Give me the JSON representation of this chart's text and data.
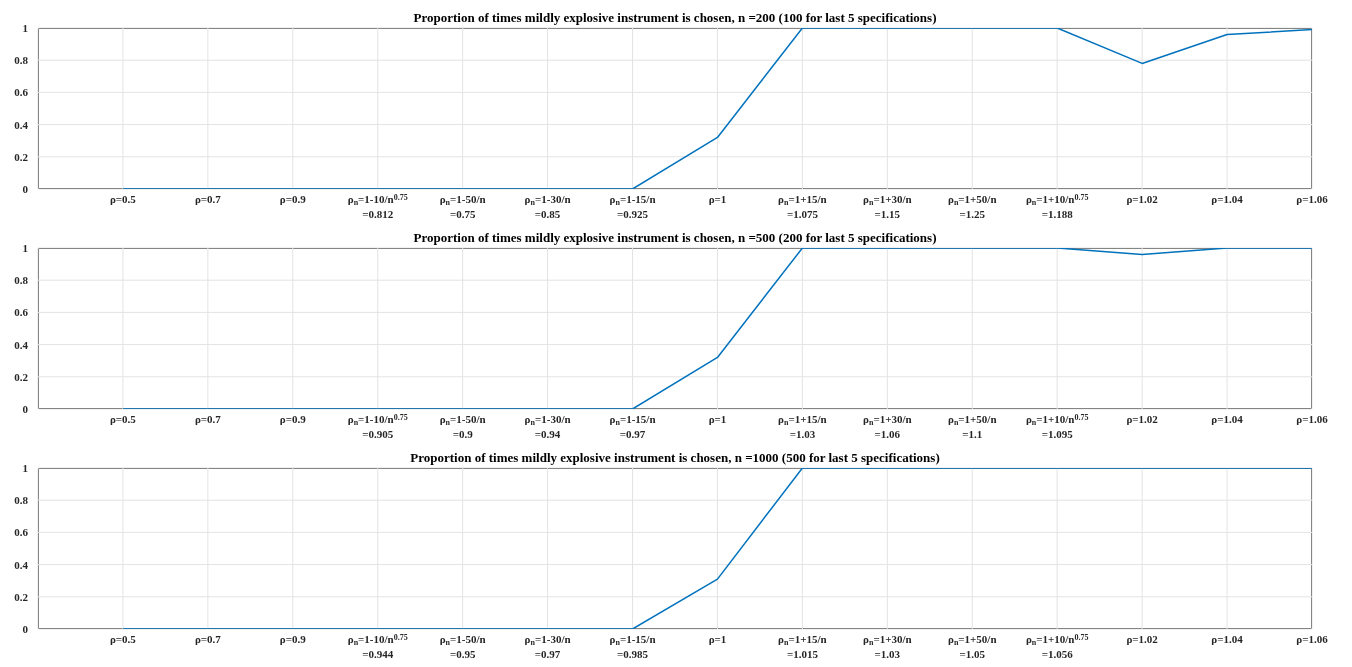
{
  "chart_data": [
    {
      "type": "line",
      "title": "Proportion of times mildly explosive instrument is chosen, n =200 (100 for last 5 specifications)",
      "categories": [
        "ρ=0.5",
        "ρ=0.7",
        "ρ=0.9",
        "ρ$_{n}$=1-10/n$^{0.75}$\n=0.812",
        "ρ$_{n}$=1-50/n\n=0.75",
        "ρ$_{n}$=1-30/n\n=0.85",
        "ρ$_{n}$=1-15/n\n=0.925",
        "ρ=1",
        "ρ$_{n}$=1+15/n\n=1.075",
        "ρ$_{n}$=1+30/n\n=1.15",
        "ρ$_{n}$=1+50/n\n=1.25",
        "ρ$_{n}$=1+10/n$^{0.75}$\n=1.188",
        "ρ=1.02",
        "ρ=1.04",
        "ρ=1.06"
      ],
      "series": [
        {
          "color": "#0072bd",
          "values": [
            0,
            0,
            0,
            0,
            0,
            0,
            0,
            0.32,
            1,
            1,
            1,
            1,
            0.78,
            0.96,
            0.99
          ]
        }
      ],
      "ylim": [
        0,
        1
      ],
      "yticks": [
        0,
        0.2,
        0.4,
        0.6,
        0.8,
        1
      ],
      "grid": true,
      "legend": false,
      "marker": "none",
      "line_style": "solid"
    },
    {
      "type": "line",
      "title": "Proportion of times mildly explosive instrument is chosen, n =500 (200 for last 5 specifications)",
      "categories": [
        "ρ=0.5",
        "ρ=0.7",
        "ρ=0.9",
        "ρ$_{n}$=1-10/n$^{0.75}$\n=0.905",
        "ρ$_{n}$=1-50/n\n=0.9",
        "ρ$_{n}$=1-30/n\n=0.94",
        "ρ$_{n}$=1-15/n\n=0.97",
        "ρ=1",
        "ρ$_{n}$=1+15/n\n=1.03",
        "ρ$_{n}$=1+30/n\n=1.06",
        "ρ$_{n}$=1+50/n\n=1.1",
        "ρ$_{n}$=1+10/n$^{0.75}$\n=1.095",
        "ρ=1.02",
        "ρ=1.04",
        "ρ=1.06"
      ],
      "series": [
        {
          "color": "#0072bd",
          "values": [
            0,
            0,
            0,
            0,
            0,
            0,
            0,
            0.32,
            1,
            1,
            1,
            1,
            0.96,
            1,
            1
          ]
        }
      ],
      "ylim": [
        0,
        1
      ],
      "yticks": [
        0,
        0.2,
        0.4,
        0.6,
        0.8,
        1
      ],
      "grid": true,
      "legend": false,
      "marker": "none",
      "line_style": "solid"
    },
    {
      "type": "line",
      "title": "Proportion of times mildly explosive instrument is chosen, n =1000 (500 for last 5 specifications)",
      "categories": [
        "ρ=0.5",
        "ρ=0.7",
        "ρ=0.9",
        "ρ$_{n}$=1-10/n$^{0.75}$\n=0.944",
        "ρ$_{n}$=1-50/n\n=0.95",
        "ρ$_{n}$=1-30/n\n=0.97",
        "ρ$_{n}$=1-15/n\n=0.985",
        "ρ=1",
        "ρ$_{n}$=1+15/n\n=1.015",
        "ρ$_{n}$=1+30/n\n=1.03",
        "ρ$_{n}$=1+50/n\n=1.05",
        "ρ$_{n}$=1+10/n$^{0.75}$\n=1.056",
        "ρ=1.02",
        "ρ=1.04",
        "ρ=1.06"
      ],
      "series": [
        {
          "color": "#0072bd",
          "values": [
            0,
            0,
            0,
            0,
            0,
            0,
            0,
            0.31,
            1,
            1,
            1,
            1,
            1,
            1,
            1
          ]
        }
      ],
      "ylim": [
        0,
        1
      ],
      "yticks": [
        0,
        0.2,
        0.4,
        0.6,
        0.8,
        1
      ],
      "grid": true,
      "legend": false,
      "marker": "none",
      "line_style": "solid"
    }
  ]
}
